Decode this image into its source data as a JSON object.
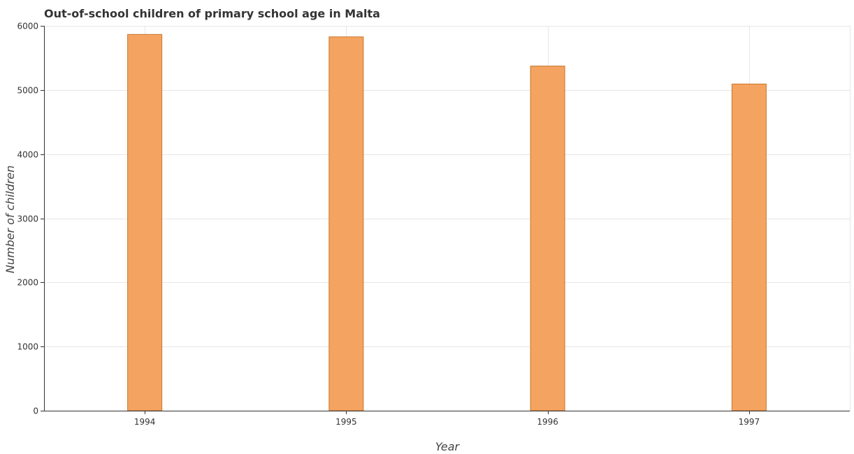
{
  "chart_data": {
    "type": "bar",
    "title": "Out-of-school children of primary school age in Malta",
    "xlabel": "Year",
    "ylabel": "Number of children",
    "categories": [
      "1994",
      "1995",
      "1996",
      "1997"
    ],
    "values": [
      5866,
      5828,
      5373,
      5093
    ],
    "ylim": [
      0,
      6000
    ],
    "yticks": [
      0,
      1000,
      2000,
      3000,
      4000,
      5000,
      6000
    ],
    "grid": true,
    "legend": "none",
    "colors": {
      "bar_fill": "#f4a460",
      "bar_stroke": "#c8742a"
    }
  }
}
